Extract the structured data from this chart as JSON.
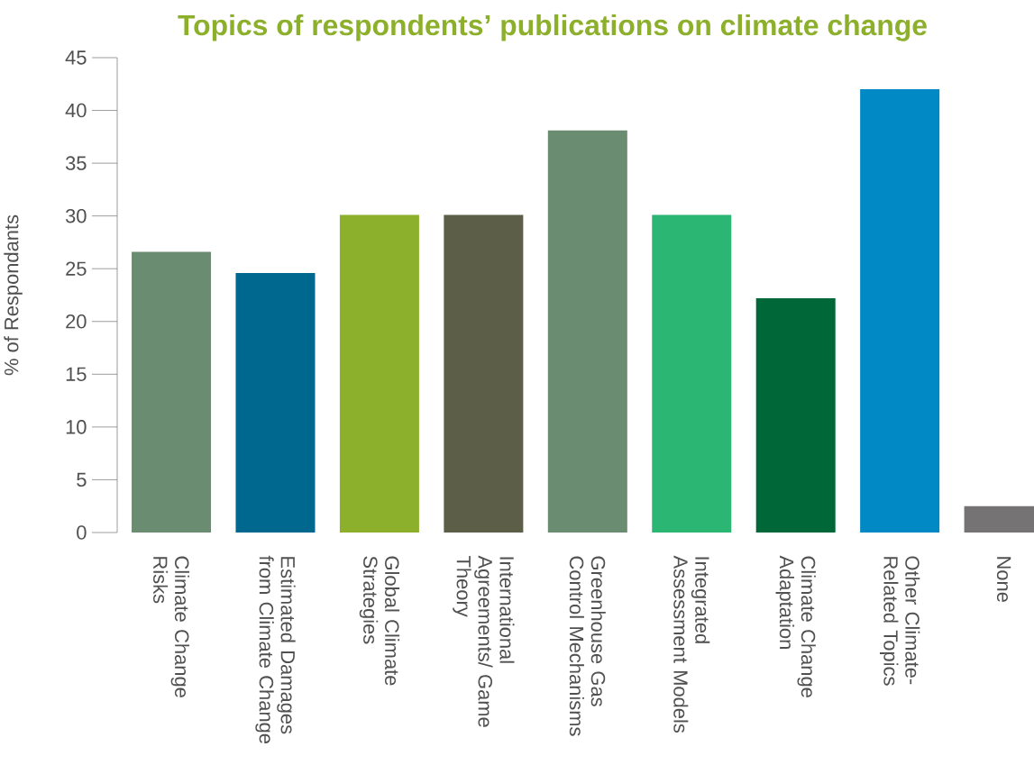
{
  "chart_data": {
    "type": "bar",
    "title": "Topics of respondents’ publications on climate change",
    "ylabel": "% of Respondants",
    "categories": [
      "Climate Change Risks",
      "Estimated Damages from Climate Change",
      "Global Climate Strategies",
      "International Agreements/ Game Theory",
      "Greenhouse Gas Control Mechanisms",
      "Integrated Assessment Models",
      "Climate Change Adaptation",
      "Other Climate-Related Topics",
      "None"
    ],
    "values": [
      26.6,
      24.6,
      30.1,
      30.1,
      38.1,
      30.1,
      22.2,
      42.0,
      2.5
    ],
    "colors": [
      "#6a8c71",
      "#00678f",
      "#8db02c",
      "#5c5e48",
      "#6a8c71",
      "#2bb673",
      "#006838",
      "#0089c4",
      "#767374"
    ],
    "ylim": [
      0,
      45
    ],
    "yticks": [
      0,
      5,
      10,
      15,
      20,
      25,
      30,
      35,
      40,
      45
    ],
    "grid": false
  }
}
